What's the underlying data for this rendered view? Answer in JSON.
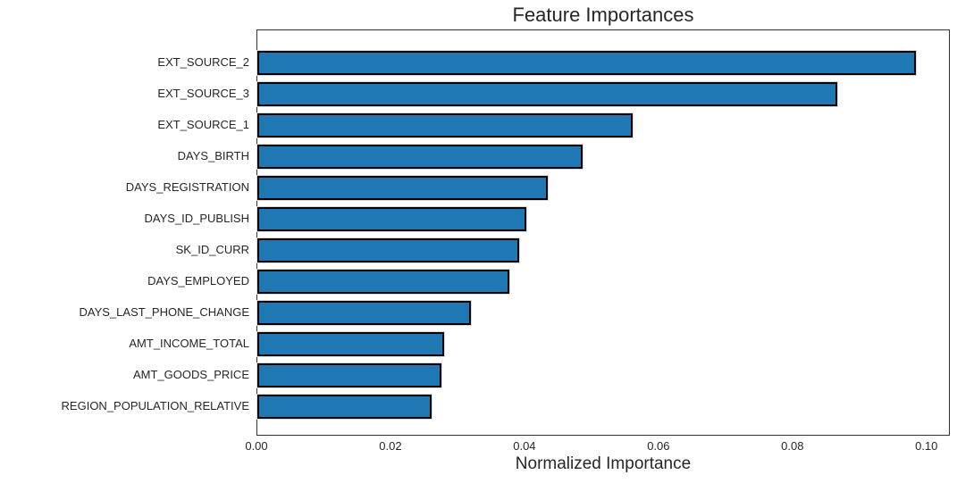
{
  "chart_data": {
    "type": "bar",
    "orientation": "horizontal",
    "title": "Feature Importances",
    "xlabel": "Normalized Importance",
    "ylabel": "",
    "categories": [
      "EXT_SOURCE_2",
      "EXT_SOURCE_3",
      "EXT_SOURCE_1",
      "DAYS_BIRTH",
      "DAYS_REGISTRATION",
      "DAYS_ID_PUBLISH",
      "SK_ID_CURR",
      "DAYS_EMPLOYED",
      "DAYS_LAST_PHONE_CHANGE",
      "AMT_INCOME_TOTAL",
      "AMT_GOODS_PRICE",
      "REGION_POPULATION_RELATIVE"
    ],
    "values": [
      0.0985,
      0.0868,
      0.0561,
      0.0487,
      0.0435,
      0.0403,
      0.0392,
      0.0377,
      0.032,
      0.028,
      0.0275,
      0.0261
    ],
    "xlim": [
      0,
      0.1035
    ],
    "xticks": {
      "labels": [
        "0.00",
        "0.02",
        "0.04",
        "0.06",
        "0.08",
        "0.10"
      ],
      "values": [
        0.0,
        0.02,
        0.04,
        0.06,
        0.08,
        0.1
      ]
    },
    "grid": false,
    "legend": "none",
    "colors": {
      "bar_fill": "#1f77b4",
      "bar_edge": "#000000",
      "frame": "#333333",
      "text": "#262626",
      "background": "#ffffff"
    }
  }
}
